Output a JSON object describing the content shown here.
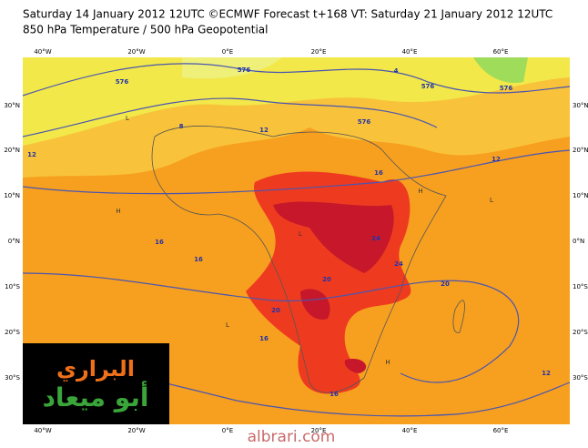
{
  "header": {
    "line1": "Saturday 14 January 2012 12UTC ©ECMWF Forecast t+168 VT: Saturday 21 January 2012 12UTC",
    "line2": "850 hPa Temperature / 500 hPa Geopotential"
  },
  "axes": {
    "longitudes": [
      "40°W",
      "20°W",
      "0°E",
      "20°E",
      "40°E",
      "60°E"
    ],
    "latitudes": [
      "30°N",
      "20°N",
      "10°N",
      "0°N",
      "10°S",
      "20°S",
      "30°S"
    ]
  },
  "contour_labels": [
    "576",
    "576",
    "576",
    "8",
    "4",
    "12",
    "12",
    "16",
    "16",
    "16",
    "20",
    "20",
    "24",
    "24",
    "20",
    "16",
    "12",
    "12",
    "16",
    "576",
    "576"
  ],
  "pressure_marks": [
    "H",
    "H",
    "L",
    "L",
    "L",
    "H",
    "L"
  ],
  "logo": {
    "line1": "البراري",
    "line2": "أبو ميعاد"
  },
  "footer": "albrari.com"
}
